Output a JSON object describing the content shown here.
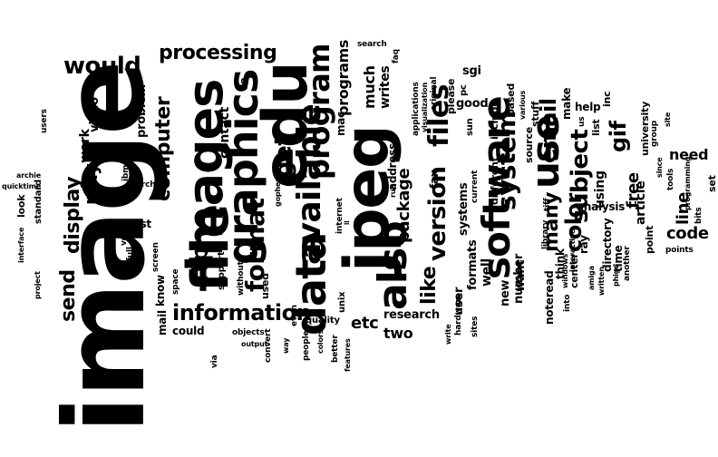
{
  "text_color": "#000000",
  "background_color": "#ffffff",
  "words": [
    "image",
    "jpeg",
    "edu",
    "images",
    "file",
    "graphics",
    "data",
    "also",
    "software",
    "use",
    "available",
    "program",
    "format",
    "files",
    "get",
    "system",
    "version",
    "ftp",
    "information",
    "email",
    "many",
    "color",
    "subject",
    "like",
    "gif",
    "would",
    "send",
    "display",
    "computer",
    "processing",
    "may",
    "package",
    "free",
    "line",
    "code",
    "need",
    "programs",
    "much",
    "writes",
    "contact",
    "etc",
    "two",
    "research",
    "article",
    "analysis",
    "make",
    "find",
    "work",
    "video",
    "problem",
    "using",
    "number",
    "want",
    "systems",
    "formats",
    "user",
    "well",
    "new",
    "noteread",
    "think",
    "ray",
    "directory",
    "time",
    "university",
    "help",
    "inc",
    "list",
    "source",
    "stuff",
    "based",
    "include",
    "good",
    "sgi",
    "pc",
    "please",
    "original",
    "applications",
    "faq",
    "search",
    "ca",
    "mac",
    "fax",
    "unix",
    "internet",
    "address",
    "run",
    "tiff",
    "library",
    "different",
    "current",
    "sun",
    "various",
    "visualization",
    "ibm",
    "check",
    "users",
    "archie",
    "quicktime",
    "archive",
    "look",
    "standard",
    "interface",
    "project",
    "ve",
    "full",
    "first",
    "screen",
    "space",
    "mail",
    "know",
    "could",
    "via",
    "support",
    "without",
    "objects",
    "output",
    "used",
    "way",
    "even",
    "quality",
    "people",
    "colors",
    "better",
    "features",
    "convert",
    "gopher",
    "ll",
    "write",
    "hardware",
    "sites",
    "windows",
    "interactive",
    "into",
    "center",
    "amiga",
    "written",
    "us",
    "phigs",
    "another",
    "point",
    "points",
    "group",
    "since",
    "programming",
    "site",
    "tools",
    "bits",
    "set"
  ]
}
